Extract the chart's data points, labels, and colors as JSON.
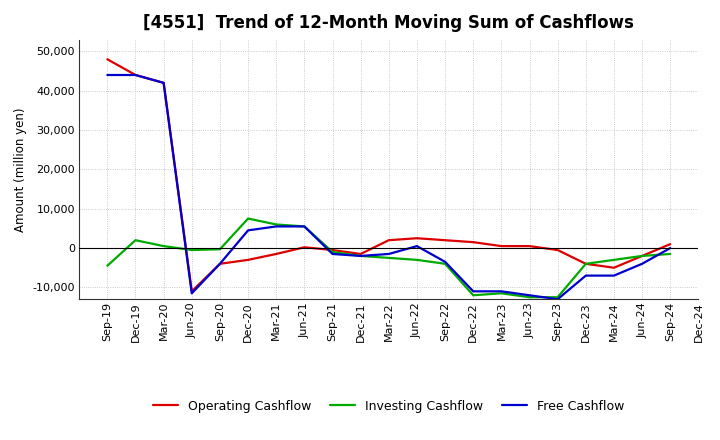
{
  "title": "[4551]  Trend of 12-Month Moving Sum of Cashflows",
  "ylabel": "Amount (million yen)",
  "x_labels": [
    "Sep-19",
    "Dec-19",
    "Mar-20",
    "Jun-20",
    "Sep-20",
    "Dec-20",
    "Mar-21",
    "Jun-21",
    "Sep-21",
    "Dec-21",
    "Mar-22",
    "Jun-22",
    "Sep-22",
    "Dec-22",
    "Mar-23",
    "Jun-23",
    "Sep-23",
    "Dec-23",
    "Mar-24",
    "Jun-24",
    "Sep-24",
    "Dec-24"
  ],
  "operating": [
    48000,
    44000,
    42000,
    -11000,
    -4000,
    -3000,
    -1500,
    200,
    -500,
    -1500,
    2000,
    2500,
    2000,
    1500,
    500,
    500,
    -500,
    -4000,
    -5000,
    -2000,
    1000,
    null
  ],
  "investing": [
    -4500,
    2000,
    500,
    -500,
    -300,
    7500,
    6000,
    5500,
    -1000,
    -2000,
    -2500,
    -3000,
    -4000,
    -12000,
    -11500,
    -12500,
    -12500,
    -4000,
    -3000,
    -2000,
    -1500,
    null
  ],
  "free": [
    44000,
    44000,
    42000,
    -11500,
    -4000,
    4500,
    5500,
    5500,
    -1500,
    -2000,
    -1500,
    500,
    -3500,
    -11000,
    -11000,
    -12000,
    -13000,
    -7000,
    -7000,
    -4000,
    0,
    null
  ],
  "operating_color": "#dd0000",
  "investing_color": "#00aa00",
  "free_color": "#0000cc",
  "background_color": "#ffffff",
  "plot_bg_color": "#ffffff",
  "grid_color": "#bbbbbb",
  "ylim": [
    -13000,
    53000
  ],
  "yticks": [
    -10000,
    0,
    10000,
    20000,
    30000,
    40000,
    50000
  ],
  "legend_labels": [
    "Operating Cashflow",
    "Investing Cashflow",
    "Free Cashflow"
  ],
  "title_fontsize": 12,
  "axis_label_fontsize": 8.5,
  "tick_fontsize": 8,
  "legend_fontsize": 9
}
